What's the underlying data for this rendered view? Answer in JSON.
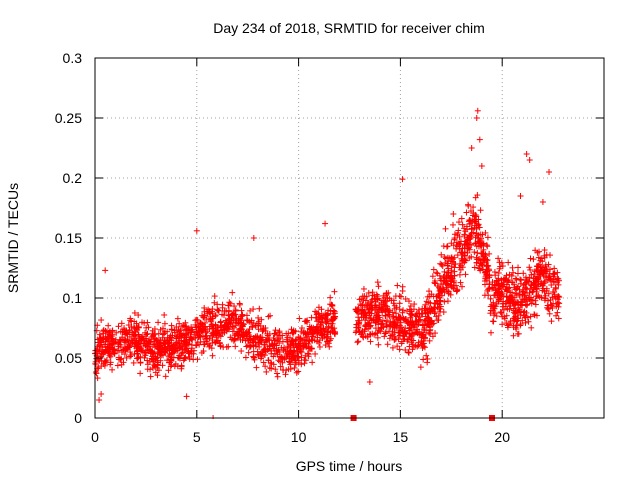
{
  "chart_data": {
    "type": "scatter",
    "title": "Day 234 of 2018, SRMTID for receiver chim",
    "xlabel": "GPS time / hours",
    "ylabel": "SRMTID / TECUs",
    "xlim": [
      0,
      25
    ],
    "ylim": [
      0,
      0.3
    ],
    "x_ticks": [
      0,
      5,
      10,
      15,
      20
    ],
    "x_tick_labels": [
      "0",
      "5",
      "10",
      "15",
      "20"
    ],
    "y_ticks": [
      0,
      0.05,
      0.1,
      0.15,
      0.2,
      0.25,
      0.3
    ],
    "y_tick_labels": [
      "0",
      "0.05",
      "0.1",
      "0.15",
      "0.2",
      "0.25",
      "0.3"
    ],
    "grid": true,
    "marker": "+",
    "color": "#ff0000",
    "zero_markers": [
      5.8,
      12.7,
      19.5
    ],
    "data_gap": [
      11.8,
      12.8
    ],
    "series": [
      {
        "name": "SRMTID",
        "segments": [
          {
            "x_start": 0.0,
            "x_end": 11.8,
            "y_center": [
              0.055,
              0.06,
              0.065,
              0.06,
              0.058,
              0.062,
              0.07,
              0.075,
              0.08,
              0.07,
              0.06,
              0.055,
              0.06,
              0.075,
              0.08
            ],
            "spread": 0.035,
            "n": 1300
          },
          {
            "x_start": 12.8,
            "x_end": 16.0,
            "y_center": [
              0.08,
              0.085,
              0.09,
              0.085,
              0.08,
              0.075,
              0.08
            ],
            "spread": 0.04,
            "n": 380
          },
          {
            "x_start": 16.0,
            "x_end": 19.4,
            "y_center": [
              0.07,
              0.08,
              0.1,
              0.12,
              0.13,
              0.14,
              0.16,
              0.14,
              0.12
            ],
            "spread": 0.05,
            "n": 440
          },
          {
            "x_start": 19.4,
            "x_end": 22.8,
            "y_center": [
              0.09,
              0.11,
              0.1,
              0.095,
              0.1,
              0.11,
              0.12,
              0.11,
              0.1
            ],
            "spread": 0.045,
            "n": 420
          }
        ],
        "highlights": [
          [
            18.8,
            0.256
          ],
          [
            18.75,
            0.25
          ],
          [
            18.9,
            0.232
          ],
          [
            18.5,
            0.225
          ],
          [
            21.2,
            0.22
          ],
          [
            21.35,
            0.215
          ],
          [
            19.0,
            0.21
          ],
          [
            22.3,
            0.205
          ],
          [
            15.1,
            0.199
          ],
          [
            5.0,
            0.156
          ],
          [
            11.3,
            0.162
          ],
          [
            7.8,
            0.15
          ],
          [
            0.5,
            0.123
          ],
          [
            17.6,
            0.17
          ],
          [
            20.9,
            0.185
          ],
          [
            22.0,
            0.18
          ],
          [
            0.2,
            0.015
          ],
          [
            0.3,
            0.02
          ],
          [
            4.5,
            0.018
          ],
          [
            13.5,
            0.03
          ]
        ]
      }
    ]
  }
}
